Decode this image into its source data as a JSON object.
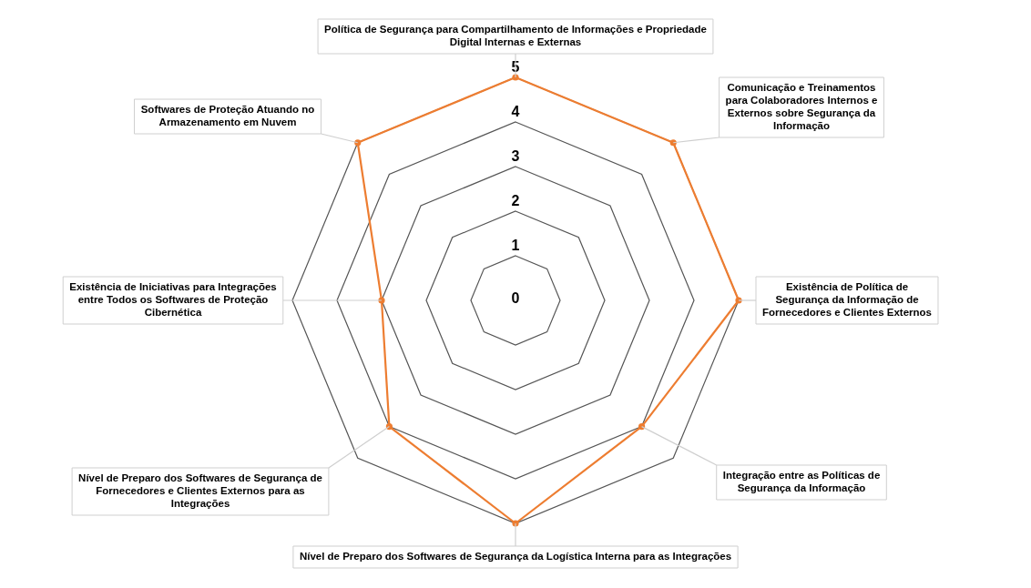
{
  "chart_data": {
    "type": "radar",
    "categories": [
      "Política de Segurança para Compartilhamento de Informações e Propriedade Digital Internas e Externas",
      "Comunicação e Treinamentos para Colaboradores Internos e Externos sobre Segurança da Informação",
      "Existência de Política de Segurança da Informação de Fornecedores e Clientes Externos",
      "Integração entre as Políticas de Segurança da Informação",
      "Nível de Preparo dos Softwares de Segurança da Logística Interna para as Integrações",
      "Nível de Preparo dos Softwares de Segurança de Fornecedores e Clientes Externos para as Integrações",
      "Existência de Iniciativas para Integrações entre Todos os Softwares de Proteção Cibernética",
      "Softwares de Proteção Atuando no Armazenamento em Nuvem"
    ],
    "series": [
      {
        "color": "#ed7d31",
        "values": [
          5,
          5,
          5,
          4,
          5,
          4,
          3,
          5
        ]
      }
    ],
    "ylim": [
      0,
      5
    ],
    "yticks": [
      0,
      1,
      2,
      3,
      4,
      5
    ],
    "grid": true,
    "legend": false,
    "marker": "circle"
  }
}
